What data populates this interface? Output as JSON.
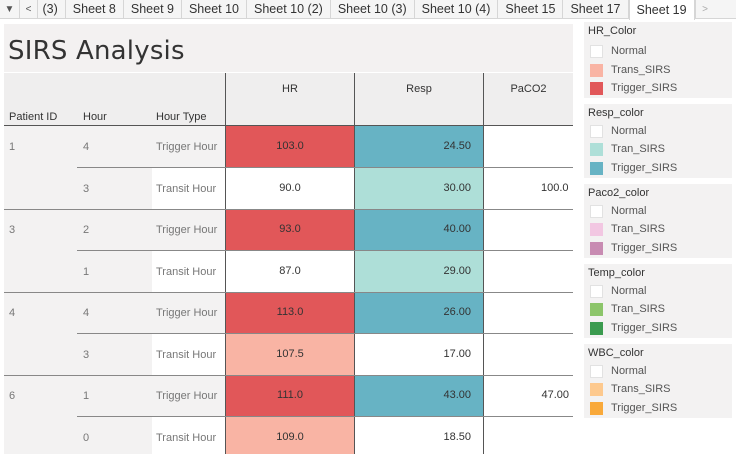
{
  "tabs": {
    "menu_glyph": "▼",
    "prev_glyph": "<",
    "next_glyph": ">",
    "items": [
      " (3)",
      "Sheet 8",
      "Sheet 9",
      "Sheet 10",
      "Sheet 10 (2)",
      "Sheet 10 (3)",
      "Sheet 10 (4)",
      "Sheet 15",
      "Sheet 17",
      "Sheet 19"
    ],
    "active": "Sheet 19"
  },
  "title": "SIRS Analysis",
  "table": {
    "row_headers": {
      "patient": "Patient ID",
      "hour": "Hour",
      "hour_type": "Hour Type"
    },
    "columns": {
      "hr": "HR",
      "resp": "Resp",
      "paco2": "PaCO2"
    },
    "patients": [
      "1",
      "3",
      "4",
      "6"
    ],
    "rows": [
      {
        "hour": "4",
        "type": "Trigger Hour",
        "hr": "103.0",
        "resp": "24.50",
        "paco2": ""
      },
      {
        "hour": "3",
        "type": "Transit Hour",
        "hr": "90.0",
        "resp": "30.00",
        "paco2": "100.0"
      },
      {
        "hour": "2",
        "type": "Trigger Hour",
        "hr": "93.0",
        "resp": "40.00",
        "paco2": ""
      },
      {
        "hour": "1",
        "type": "Transit Hour",
        "hr": "87.0",
        "resp": "29.00",
        "paco2": ""
      },
      {
        "hour": "4",
        "type": "Trigger Hour",
        "hr": "113.0",
        "resp": "26.00",
        "paco2": ""
      },
      {
        "hour": "3",
        "type": "Transit Hour",
        "hr": "107.5",
        "resp": "17.00",
        "paco2": ""
      },
      {
        "hour": "1",
        "type": "Trigger Hour",
        "hr": "111.0",
        "resp": "43.00",
        "paco2": "47.00"
      },
      {
        "hour": "0",
        "type": "Transit Hour",
        "hr": "109.0",
        "resp": "18.50",
        "paco2": ""
      }
    ]
  },
  "colors": {
    "hr_trigger": "#e15759",
    "hr_trans": "#f9b4a4",
    "resp_trigger": "#67b3c4",
    "resp_tran": "#aedfd8",
    "paco2_tran": "#f2c7e2",
    "paco2_trigger": "#c88bb2",
    "temp_tran": "#8cc56a",
    "temp_trigger": "#3b9b4f",
    "wbc_trans": "#fdc98e",
    "wbc_trigger": "#f9a93a",
    "normal": "#ffffff"
  },
  "legends": [
    {
      "title": "HR_Color",
      "items": [
        {
          "label": "Normal",
          "color": "#ffffff"
        },
        {
          "label": "Trans_SIRS",
          "color": "#f9b4a4"
        },
        {
          "label": "Trigger_SIRS",
          "color": "#e15759"
        }
      ]
    },
    {
      "title": "Resp_color",
      "items": [
        {
          "label": "Normal",
          "color": "#ffffff"
        },
        {
          "label": "Tran_SIRS",
          "color": "#aedfd8"
        },
        {
          "label": "Trigger_SIRS",
          "color": "#67b3c4"
        }
      ]
    },
    {
      "title": "Paco2_color",
      "items": [
        {
          "label": "Normal",
          "color": "#ffffff"
        },
        {
          "label": "Tran_SIRS",
          "color": "#f2c7e2"
        },
        {
          "label": "Trigger_SIRS",
          "color": "#c88bb2"
        }
      ]
    },
    {
      "title": "Temp_color",
      "items": [
        {
          "label": "Normal",
          "color": "#ffffff"
        },
        {
          "label": "Tran_SIRS",
          "color": "#8cc56a"
        },
        {
          "label": "Trigger_SIRS",
          "color": "#3b9b4f"
        }
      ]
    },
    {
      "title": "WBC_color",
      "items": [
        {
          "label": "Normal",
          "color": "#ffffff"
        },
        {
          "label": "Trans_SIRS",
          "color": "#fdc98e"
        },
        {
          "label": "Trigger_SIRS",
          "color": "#f9a93a"
        }
      ]
    }
  ]
}
